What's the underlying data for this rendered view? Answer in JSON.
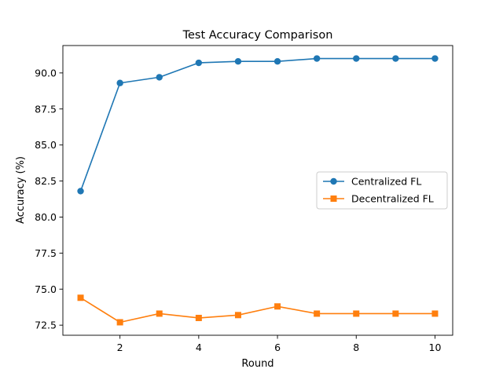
{
  "chart_data": {
    "type": "line",
    "title": "Test Accuracy Comparison",
    "xlabel": "Round",
    "ylabel": "Accuracy (%)",
    "x": [
      1,
      2,
      3,
      4,
      5,
      6,
      7,
      8,
      9,
      10
    ],
    "xlim": [
      0.55,
      10.45
    ],
    "ylim": [
      71.8,
      91.9
    ],
    "xticks": [
      2,
      4,
      6,
      8,
      10
    ],
    "xtick_labels": [
      "2",
      "4",
      "6",
      "8",
      "10"
    ],
    "yticks": [
      72.5,
      75.0,
      77.5,
      80.0,
      82.5,
      85.0,
      87.5,
      90.0
    ],
    "ytick_labels": [
      "72.5",
      "75.0",
      "77.5",
      "80.0",
      "82.5",
      "85.0",
      "87.5",
      "90.0"
    ],
    "grid": false,
    "legend_position": "center-right",
    "series": [
      {
        "name": "Centralized FL",
        "marker": "circle",
        "color": "#1f77b4",
        "values": [
          81.8,
          89.3,
          89.7,
          90.7,
          90.8,
          90.8,
          91.0,
          91.0,
          91.0,
          91.0
        ]
      },
      {
        "name": "Decentralized FL",
        "marker": "square",
        "color": "#ff7f0e",
        "values": [
          74.4,
          72.7,
          73.3,
          73.0,
          73.2,
          73.8,
          73.3,
          73.3,
          73.3,
          73.3
        ]
      }
    ]
  }
}
